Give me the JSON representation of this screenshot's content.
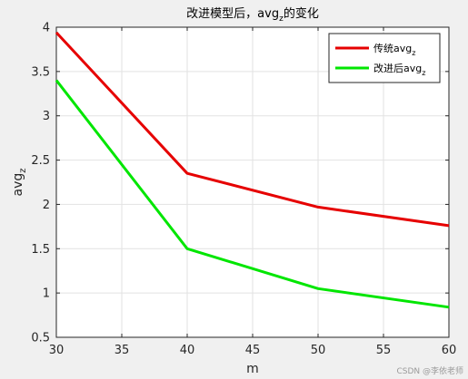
{
  "chart_data": {
    "type": "line",
    "title": "改进模型后，avg",
    "title_sub": "z",
    "title_suffix": "的变化",
    "xlabel": "m",
    "ylabel": "avg",
    "ylabel_sub": "z",
    "xlim": [
      30,
      60
    ],
    "ylim": [
      0.5,
      4
    ],
    "xticks": [
      30,
      35,
      40,
      45,
      50,
      55,
      60
    ],
    "yticks": [
      0.5,
      1,
      1.5,
      2,
      2.5,
      3,
      3.5,
      4
    ],
    "grid": true,
    "legend_position": "top-right",
    "x": [
      30,
      40,
      50,
      60
    ],
    "series": [
      {
        "name": "传统avg",
        "name_sub": "z",
        "color": "#e60000",
        "values": [
          3.94,
          2.35,
          1.97,
          1.76
        ]
      },
      {
        "name": "改进后avg",
        "name_sub": "z",
        "color": "#00e600",
        "values": [
          3.4,
          1.5,
          1.05,
          0.84
        ]
      }
    ]
  },
  "watermark": "CSDN @李依老师"
}
